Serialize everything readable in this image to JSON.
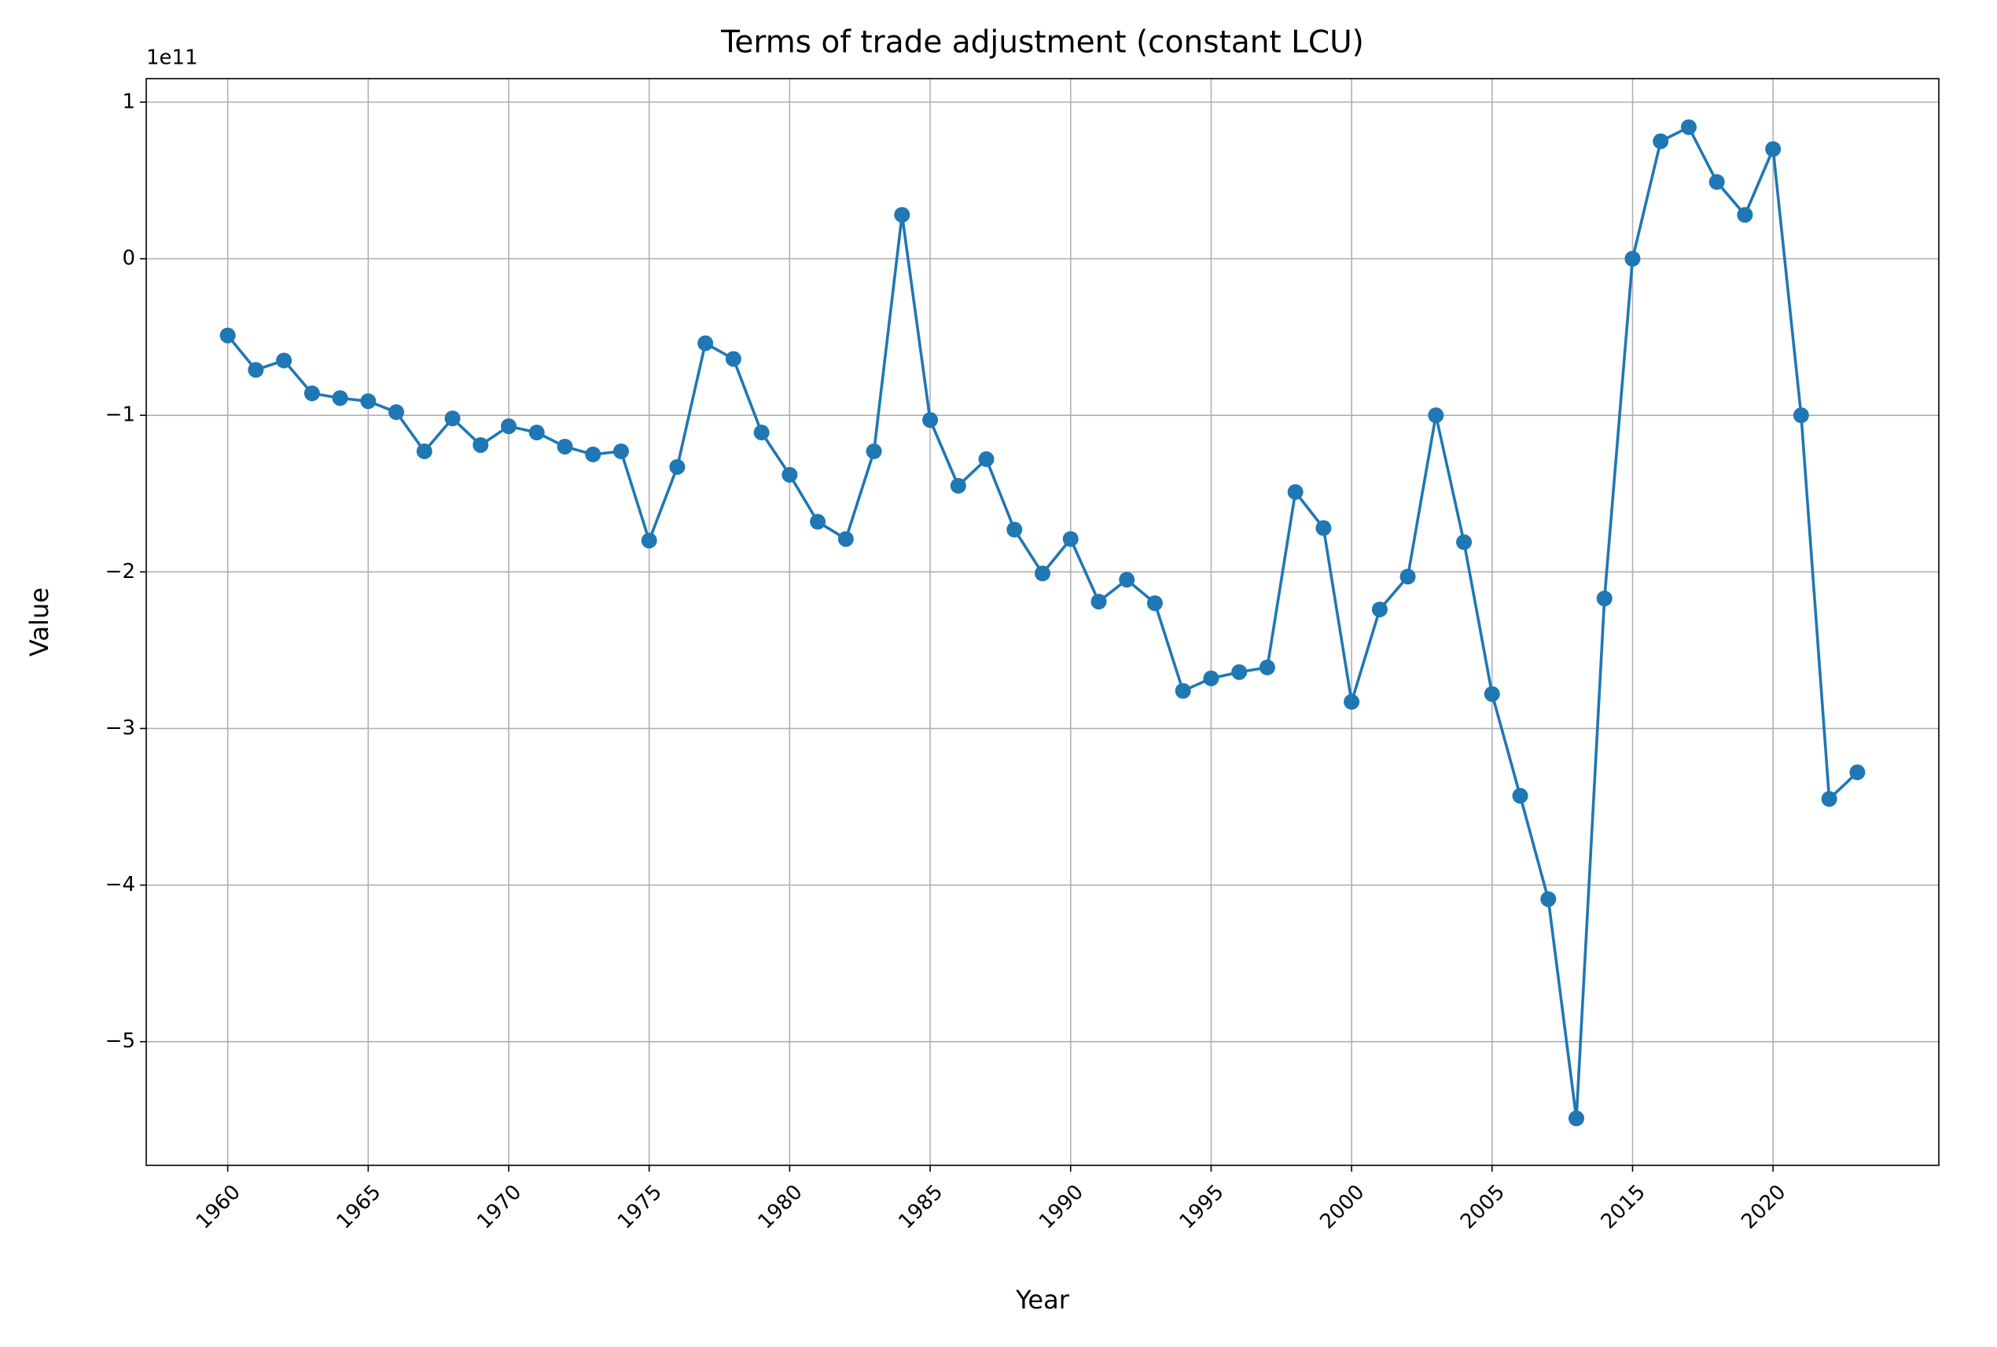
{
  "chart_data": {
    "type": "line",
    "title": "Terms of trade adjustment (constant LCU)",
    "x_label": "Year",
    "y_label": "Value",
    "y_offset_label": "1e11",
    "categories": [
      "1960",
      null,
      null,
      null,
      null,
      "1965",
      null,
      null,
      null,
      null,
      "1970",
      null,
      null,
      null,
      null,
      "1975",
      null,
      null,
      null,
      null,
      "1980",
      null,
      null,
      null,
      null,
      "1985",
      null,
      null,
      null,
      null,
      "1990",
      null,
      null,
      null,
      null,
      "1995",
      null,
      null,
      null,
      null,
      "2000",
      null,
      null,
      null,
      null,
      "2005",
      null,
      null,
      null,
      null,
      "2015",
      null,
      null,
      null,
      null,
      "2020",
      null,
      null,
      null
    ],
    "series": [
      {
        "name": "Terms of trade adjustment",
        "color": "#1f77b4",
        "values": [
          -0.49,
          -0.71,
          -0.65,
          -0.86,
          -0.89,
          -0.91,
          -0.98,
          -1.23,
          -1.02,
          -1.19,
          -1.07,
          -1.11,
          -1.2,
          -1.25,
          -1.23,
          -1.8,
          -1.33,
          -0.54,
          -0.64,
          -1.11,
          -1.38,
          -1.68,
          -1.79,
          -1.23,
          0.28,
          -1.03,
          -1.45,
          -1.28,
          -1.73,
          -2.01,
          -1.79,
          -2.19,
          -2.05,
          -2.2,
          -2.76,
          -2.68,
          -2.64,
          -2.61,
          -1.49,
          -1.72,
          -2.83,
          -2.24,
          -2.03,
          -1.0,
          -1.81,
          -2.78,
          -3.43,
          -4.09,
          -5.49,
          -2.17,
          0.0,
          0.75,
          0.84,
          0.49,
          0.28,
          0.7,
          -1.0,
          -3.45,
          -3.28
        ]
      }
    ],
    "ylim": [
      -5.79,
      1.15
    ],
    "yticks": [
      {
        "value": -5,
        "label": "−5"
      },
      {
        "value": -4,
        "label": "−4"
      },
      {
        "value": -3,
        "label": "−3"
      },
      {
        "value": -2,
        "label": "−2"
      },
      {
        "value": -1,
        "label": "−1"
      },
      0,
      1
    ],
    "grid": true
  }
}
